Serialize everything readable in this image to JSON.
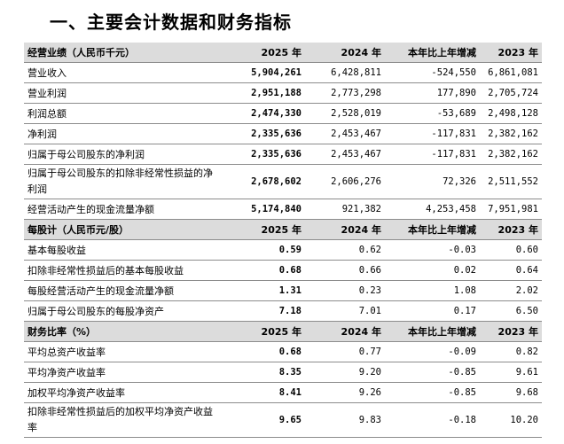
{
  "title": "一、主要会计数据和财务指标",
  "sections": [
    {
      "header": [
        "经营业绩（人民币千元）",
        "2025 年",
        "2024 年",
        "本年比上年增减",
        "2023 年"
      ],
      "rows": [
        [
          "营业收入",
          "5,904,261",
          "6,428,811",
          "-524,550",
          "6,861,081"
        ],
        [
          "营业利润",
          "2,951,188",
          "2,773,298",
          "177,890",
          "2,705,724"
        ],
        [
          "利润总额",
          "2,474,330",
          "2,528,019",
          "-53,689",
          "2,498,128"
        ],
        [
          "净利润",
          "2,335,636",
          "2,453,467",
          "-117,831",
          "2,382,162"
        ],
        [
          "归属于母公司股东的净利润",
          "2,335,636",
          "2,453,467",
          "-117,831",
          "2,382,162"
        ],
        [
          "归属于母公司股东的扣除非经常性损益的净利润",
          "2,678,602",
          "2,606,276",
          "72,326",
          "2,511,552"
        ],
        [
          "经营活动产生的现金流量净额",
          "5,174,840",
          "921,382",
          "4,253,458",
          "7,951,981"
        ]
      ]
    },
    {
      "header": [
        "每股计（人民币元/股）",
        "2025 年",
        "2024 年",
        "本年比上年增减",
        "2023 年"
      ],
      "rows": [
        [
          "基本每股收益",
          "0.59",
          "0.62",
          "-0.03",
          "0.60"
        ],
        [
          "扣除非经常性损益后的基本每股收益",
          "0.68",
          "0.66",
          "0.02",
          "0.64"
        ],
        [
          "每股经营活动产生的现金流量净额",
          "1.31",
          "0.23",
          "1.08",
          "2.02"
        ],
        [
          "归属于母公司股东的每股净资产",
          "7.18",
          "7.01",
          "0.17",
          "6.50"
        ]
      ]
    },
    {
      "header": [
        "财务比率（%）",
        "2025 年",
        "2024 年",
        "本年比上年增减",
        "2023 年"
      ],
      "rows": [
        [
          "平均总资产收益率",
          "0.68",
          "0.77",
          "-0.09",
          "0.82"
        ],
        [
          "平均净资产收益率",
          "8.35",
          "9.20",
          "-0.85",
          "9.61"
        ],
        [
          "加权平均净资产收益率",
          "8.41",
          "9.26",
          "-0.85",
          "9.68"
        ],
        [
          "扣除非经常性损益后的加权平均净资产收益率",
          "9.65",
          "9.83",
          "-0.18",
          "10.20"
        ]
      ]
    }
  ]
}
